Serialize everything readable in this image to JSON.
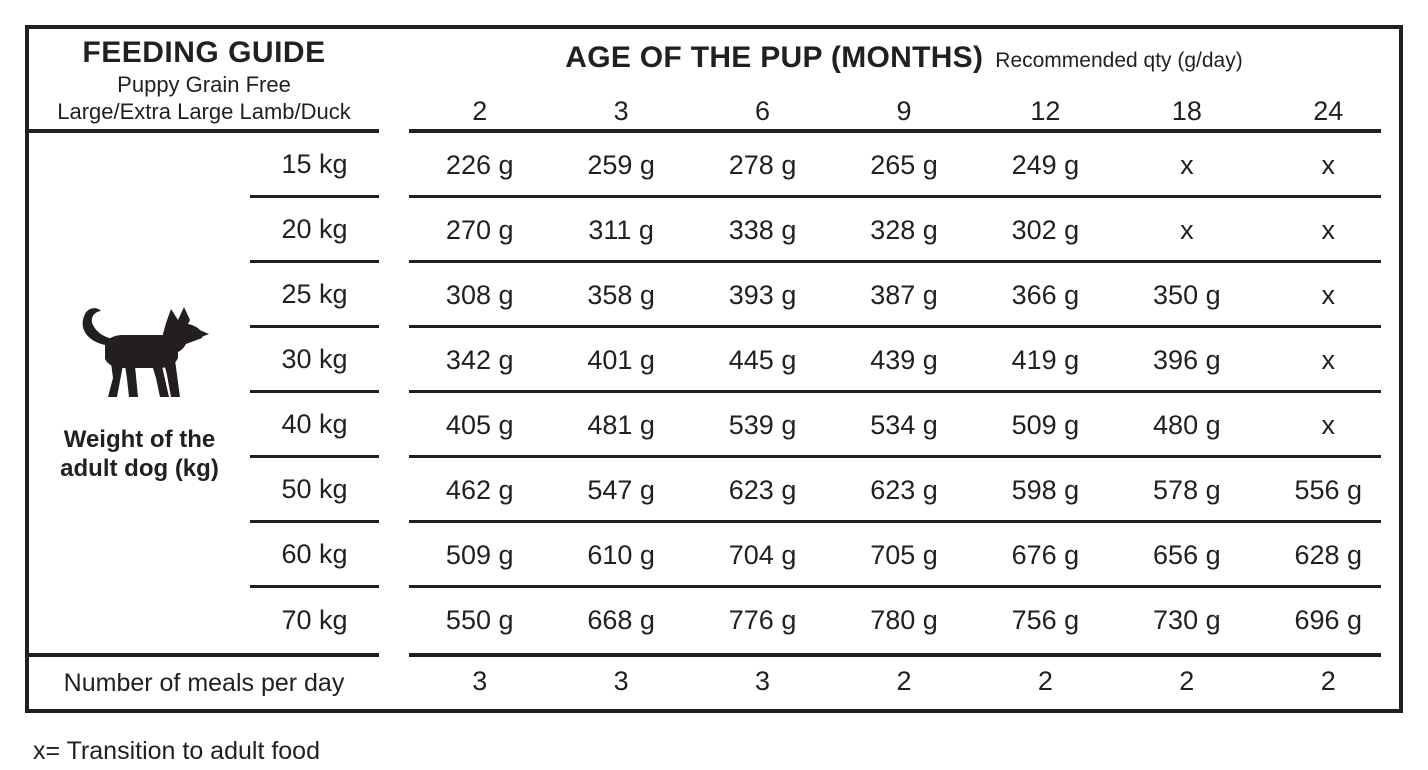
{
  "page": {
    "background": "#ffffff",
    "ink": "#231f20"
  },
  "header": {
    "title": "FEEDING GUIDE",
    "subtitle_line1": "Puppy Grain Free",
    "subtitle_line2": "Large/Extra Large Lamb/Duck",
    "age_title": "AGE OF THE PUP (MONTHS)",
    "age_note": "Recommended qty (g/day)"
  },
  "months": [
    "2",
    "3",
    "6",
    "9",
    "12",
    "18",
    "24"
  ],
  "left_axis": {
    "icon": "dog-icon",
    "label_line1": "Weight of the",
    "label_line2": "adult dog (kg)"
  },
  "rows": [
    {
      "weight": "15 kg",
      "values": [
        "226 g",
        "259 g",
        "278 g",
        "265 g",
        "249 g",
        "x",
        "x"
      ]
    },
    {
      "weight": "20 kg",
      "values": [
        "270 g",
        "311 g",
        "338 g",
        "328 g",
        "302 g",
        "x",
        "x"
      ]
    },
    {
      "weight": "25 kg",
      "values": [
        "308 g",
        "358 g",
        "393 g",
        "387 g",
        "366 g",
        "350 g",
        "x"
      ]
    },
    {
      "weight": "30 kg",
      "values": [
        "342 g",
        "401 g",
        "445 g",
        "439 g",
        "419 g",
        "396 g",
        "x"
      ]
    },
    {
      "weight": "40 kg",
      "values": [
        "405 g",
        "481 g",
        "539 g",
        "534 g",
        "509 g",
        "480 g",
        "x"
      ]
    },
    {
      "weight": "50 kg",
      "values": [
        "462 g",
        "547 g",
        "623 g",
        "623 g",
        "598 g",
        "578 g",
        "556 g"
      ]
    },
    {
      "weight": "60 kg",
      "values": [
        "509 g",
        "610 g",
        "704 g",
        "705 g",
        "676 g",
        "656 g",
        "628 g"
      ]
    },
    {
      "weight": "70 kg",
      "values": [
        "550 g",
        "668 g",
        "776 g",
        "780 g",
        "756 g",
        "730 g",
        "696 g"
      ]
    }
  ],
  "meals": {
    "label": "Number of meals per day",
    "values": [
      "3",
      "3",
      "3",
      "2",
      "2",
      "2",
      "2"
    ]
  },
  "footnote": "x= Transition to adult food",
  "chart_data": {
    "type": "table",
    "title": "FEEDING GUIDE",
    "subtitle": "Puppy Grain Free Large/Extra Large Lamb/Duck",
    "column_group_label": "AGE OF THE PUP (MONTHS)",
    "unit_note": "Recommended qty (g/day)",
    "columns_age_months": [
      2,
      3,
      6,
      9,
      12,
      18,
      24
    ],
    "row_axis_label": "Weight of the adult dog (kg)",
    "rows": [
      {
        "weight_kg": 15,
        "qty_g_per_day": [
          226,
          259,
          278,
          265,
          249,
          null,
          null
        ]
      },
      {
        "weight_kg": 20,
        "qty_g_per_day": [
          270,
          311,
          338,
          328,
          302,
          null,
          null
        ]
      },
      {
        "weight_kg": 25,
        "qty_g_per_day": [
          308,
          358,
          393,
          387,
          366,
          350,
          null
        ]
      },
      {
        "weight_kg": 30,
        "qty_g_per_day": [
          342,
          401,
          445,
          439,
          419,
          396,
          null
        ]
      },
      {
        "weight_kg": 40,
        "qty_g_per_day": [
          405,
          481,
          539,
          534,
          509,
          480,
          null
        ]
      },
      {
        "weight_kg": 50,
        "qty_g_per_day": [
          462,
          547,
          623,
          623,
          598,
          578,
          556
        ]
      },
      {
        "weight_kg": 60,
        "qty_g_per_day": [
          509,
          610,
          704,
          705,
          676,
          656,
          628
        ]
      },
      {
        "weight_kg": 70,
        "qty_g_per_day": [
          550,
          668,
          776,
          780,
          756,
          730,
          696
        ]
      }
    ],
    "meals_per_day": [
      3,
      3,
      3,
      2,
      2,
      2,
      2
    ],
    "x_meaning": "x= Transition to adult food"
  }
}
